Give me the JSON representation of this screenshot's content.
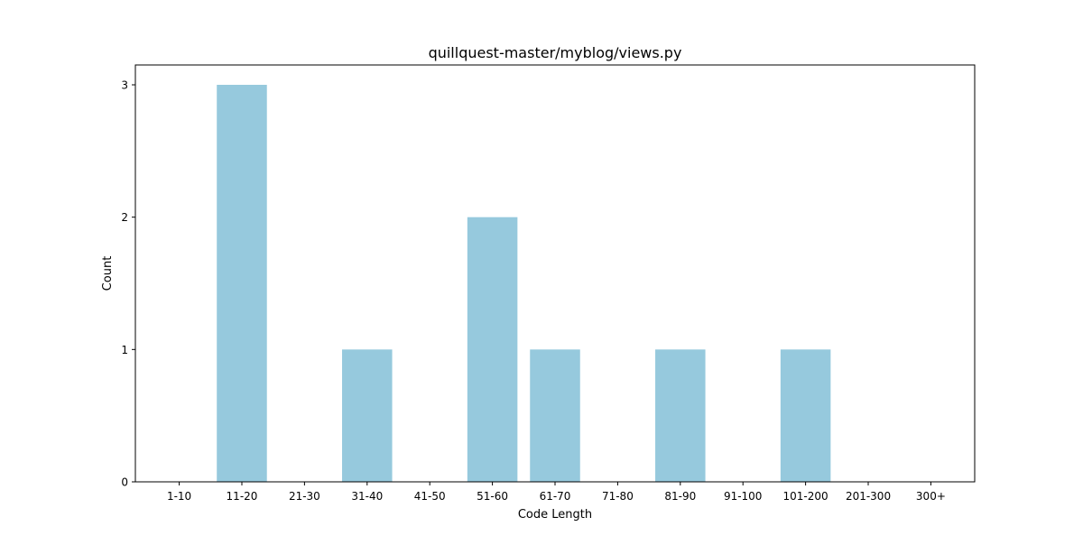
{
  "chart_data": {
    "type": "bar",
    "title": "quillquest-master/myblog/views.py",
    "xlabel": "Code Length",
    "ylabel": "Count",
    "categories": [
      "1-10",
      "11-20",
      "21-30",
      "31-40",
      "41-50",
      "51-60",
      "61-70",
      "71-80",
      "81-90",
      "91-100",
      "101-200",
      "201-300",
      "300+"
    ],
    "values": [
      0,
      3,
      0,
      1,
      0,
      2,
      1,
      0,
      1,
      0,
      1,
      0,
      0
    ],
    "ylim": [
      0,
      3.15
    ],
    "yticks": [
      0,
      1,
      2,
      3
    ],
    "grid": false,
    "bar_color": "#96c9dd"
  }
}
